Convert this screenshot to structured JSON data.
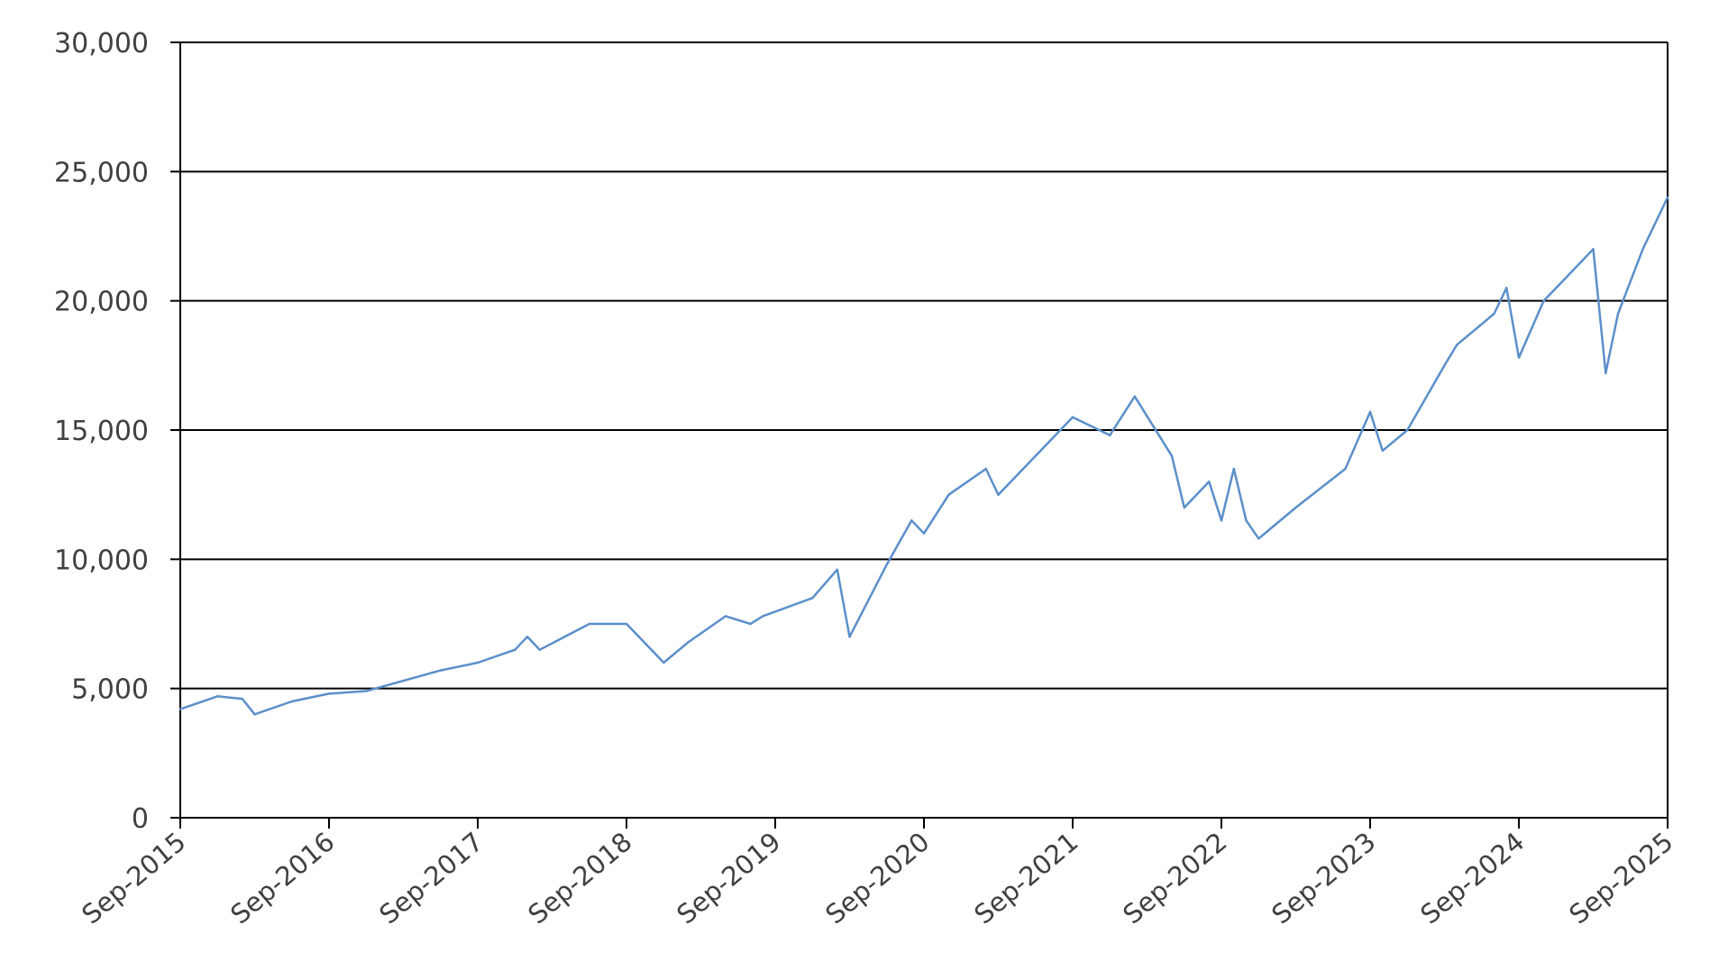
{
  "chart_data": {
    "type": "line",
    "title": "",
    "xlabel": "",
    "ylabel": "",
    "ylim": [
      0,
      30000
    ],
    "xlim": [
      "2015-09",
      "2025-09"
    ],
    "grid": "horizontal",
    "yticks": [
      0,
      5000,
      10000,
      15000,
      20000,
      25000,
      30000
    ],
    "ytick_labels": [
      "0",
      "5,000",
      "10,000",
      "15,000",
      "20,000",
      "25,000",
      "30,000"
    ],
    "xticks": [
      "2015-09",
      "2016-09",
      "2017-09",
      "2018-09",
      "2019-09",
      "2020-09",
      "2021-09",
      "2022-09",
      "2023-09",
      "2024-09",
      "2025-09"
    ],
    "xtick_labels": [
      "Sep-2015",
      "Sep-2016",
      "Sep-2017",
      "Sep-2018",
      "Sep-2019",
      "Sep-2020",
      "Sep-2021",
      "Sep-2022",
      "Sep-2023",
      "Sep-2024",
      "Sep-2025"
    ],
    "colors": {
      "series": "#5b8fc9",
      "grid": "#000000",
      "axis": "#000000"
    },
    "series": [
      {
        "name": "",
        "x": [
          "2015-09",
          "2015-12",
          "2016-02",
          "2016-03",
          "2016-06",
          "2016-09",
          "2016-12",
          "2017-03",
          "2017-06",
          "2017-09",
          "2017-12",
          "2018-01",
          "2018-02",
          "2018-06",
          "2018-09",
          "2018-10",
          "2018-12",
          "2019-02",
          "2019-05",
          "2019-07",
          "2019-08",
          "2019-12",
          "2020-02",
          "2020-03",
          "2020-06",
          "2020-08",
          "2020-09",
          "2020-11",
          "2021-02",
          "2021-03",
          "2021-06",
          "2021-09",
          "2021-12",
          "2022-02",
          "2022-05",
          "2022-06",
          "2022-08",
          "2022-09",
          "2022-10",
          "2022-11",
          "2022-12",
          "2023-03",
          "2023-07",
          "2023-09",
          "2023-10",
          "2023-12",
          "2024-03",
          "2024-04",
          "2024-07",
          "2024-08",
          "2024-09",
          "2024-11",
          "2025-02",
          "2025-03",
          "2025-04",
          "2025-05",
          "2025-07",
          "2025-09"
        ],
        "y": [
          4200,
          4700,
          4600,
          4000,
          4500,
          4800,
          4900,
          5300,
          5700,
          6000,
          6500,
          7000,
          6500,
          7500,
          7500,
          7000,
          6000,
          6800,
          7800,
          7500,
          7800,
          8500,
          9600,
          7000,
          9800,
          11500,
          11000,
          12500,
          13500,
          12500,
          14000,
          15500,
          14800,
          16300,
          14000,
          12000,
          13000,
          11500,
          13500,
          11500,
          10800,
          12000,
          13500,
          15700,
          14200,
          15000,
          17500,
          18300,
          19500,
          20500,
          17800,
          20000,
          21500,
          22000,
          17200,
          19500,
          22000,
          24000
        ]
      }
    ]
  }
}
